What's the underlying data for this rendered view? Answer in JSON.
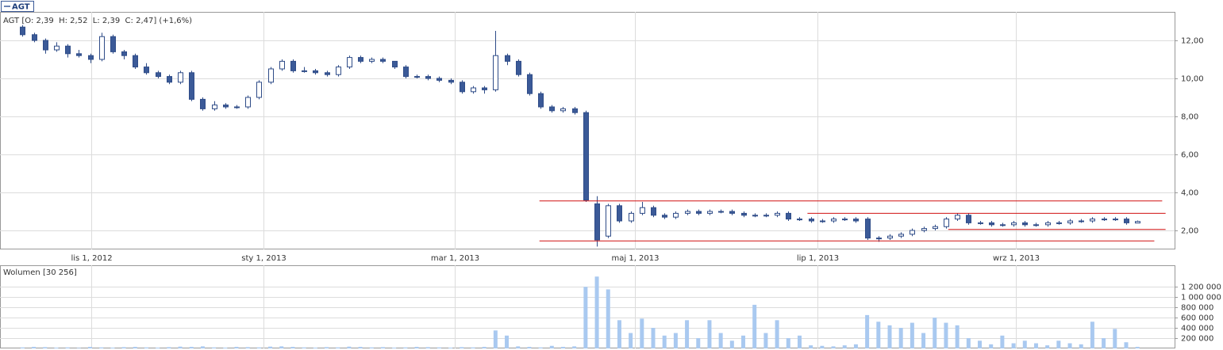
{
  "chart_data": [
    {
      "type": "candlestick",
      "name": "AGT",
      "info_label": "AGT [O: 2,39  H: 2,52  L: 2,39  C: 2,47] (+1,6%)",
      "x": [
        0,
        1,
        2,
        3,
        4,
        5,
        6,
        7,
        8,
        9,
        10,
        11,
        12,
        13,
        14,
        15,
        16,
        17,
        18,
        19,
        20,
        21,
        22,
        23,
        24,
        25,
        26,
        27,
        28,
        29,
        30,
        31,
        32,
        33,
        34,
        35,
        36,
        37,
        38,
        39,
        40,
        41,
        42,
        43,
        44,
        45,
        46,
        47,
        48,
        49,
        50,
        51,
        52,
        53,
        54,
        55,
        56,
        57,
        58,
        59,
        60,
        61,
        62,
        63,
        64,
        65,
        66,
        67,
        68,
        69,
        70,
        71,
        72,
        73,
        74,
        75,
        76,
        77,
        78,
        79,
        80,
        81,
        82,
        83,
        84,
        85,
        86,
        87,
        88,
        89,
        90,
        91,
        92,
        93,
        94,
        95,
        96,
        97,
        98,
        99
      ],
      "open": [
        12.7,
        12.3,
        12.0,
        11.5,
        11.7,
        11.3,
        11.2,
        11.0,
        12.2,
        11.4,
        11.2,
        10.6,
        10.3,
        10.1,
        9.8,
        10.3,
        8.9,
        8.4,
        8.6,
        8.5,
        8.5,
        9.0,
        9.8,
        10.5,
        10.9,
        10.4,
        10.4,
        10.3,
        10.2,
        10.6,
        11.1,
        10.9,
        11.0,
        10.9,
        10.6,
        10.1,
        10.1,
        10.0,
        9.9,
        9.8,
        9.3,
        9.5,
        9.4,
        11.2,
        10.9,
        10.2,
        9.2,
        8.5,
        8.3,
        8.4,
        8.2,
        3.4,
        1.7,
        3.3,
        2.5,
        2.9,
        3.2,
        2.8,
        2.7,
        2.9,
        3.0,
        2.9,
        3.0,
        3.0,
        2.9,
        2.8,
        2.8,
        2.8,
        2.9,
        2.6,
        2.6,
        2.5,
        2.5,
        2.6,
        2.6,
        2.6,
        1.6,
        1.6,
        1.7,
        1.8,
        2.0,
        2.1,
        2.2,
        2.6,
        2.8,
        2.4,
        2.4,
        2.3,
        2.3,
        2.4,
        2.3,
        2.3,
        2.4,
        2.4,
        2.5,
        2.5,
        2.6,
        2.6,
        2.6,
        2.39
      ],
      "high": [
        12.8,
        12.4,
        12.1,
        11.9,
        11.8,
        11.5,
        11.3,
        12.4,
        12.3,
        11.5,
        11.3,
        10.8,
        10.4,
        10.2,
        10.4,
        10.4,
        9.0,
        8.8,
        8.7,
        8.6,
        9.1,
        9.9,
        10.6,
        11.0,
        11.0,
        10.6,
        10.5,
        10.4,
        10.7,
        11.2,
        11.2,
        11.1,
        11.1,
        10.9,
        10.7,
        10.2,
        10.2,
        10.1,
        10.0,
        9.9,
        9.6,
        9.6,
        12.5,
        11.3,
        11.0,
        10.3,
        9.3,
        8.6,
        8.5,
        8.5,
        8.3,
        3.8,
        3.4,
        3.4,
        3.0,
        3.5,
        3.3,
        2.9,
        3.0,
        3.1,
        3.1,
        3.1,
        3.1,
        3.1,
        3.0,
        2.9,
        2.9,
        3.0,
        3.0,
        2.7,
        2.7,
        2.6,
        2.7,
        2.7,
        2.7,
        2.7,
        1.7,
        1.8,
        1.9,
        2.1,
        2.2,
        2.3,
        2.7,
        2.9,
        2.9,
        2.5,
        2.5,
        2.4,
        2.5,
        2.5,
        2.4,
        2.5,
        2.5,
        2.6,
        2.6,
        2.7,
        2.7,
        2.7,
        2.7,
        2.52
      ],
      "low": [
        12.2,
        11.9,
        11.3,
        11.4,
        11.1,
        11.1,
        10.8,
        10.9,
        11.3,
        11.0,
        10.5,
        10.2,
        10.0,
        9.7,
        9.7,
        8.8,
        8.3,
        8.3,
        8.4,
        8.4,
        8.4,
        8.9,
        9.7,
        10.4,
        10.3,
        10.3,
        10.2,
        10.1,
        10.1,
        10.5,
        10.8,
        10.8,
        10.8,
        10.5,
        10.0,
        10.0,
        9.9,
        9.8,
        9.7,
        9.2,
        9.2,
        9.2,
        9.3,
        10.7,
        10.1,
        9.1,
        8.4,
        8.2,
        8.2,
        8.1,
        3.5,
        1.15,
        1.6,
        2.4,
        2.4,
        2.8,
        2.7,
        2.6,
        2.6,
        2.8,
        2.8,
        2.8,
        2.9,
        2.8,
        2.7,
        2.7,
        2.7,
        2.7,
        2.5,
        2.5,
        2.4,
        2.4,
        2.4,
        2.5,
        2.4,
        1.5,
        1.4,
        1.5,
        1.6,
        1.7,
        1.9,
        2.0,
        2.1,
        2.5,
        2.3,
        2.3,
        2.2,
        2.2,
        2.2,
        2.2,
        2.2,
        2.2,
        2.3,
        2.3,
        2.4,
        2.4,
        2.5,
        2.5,
        2.3,
        2.39
      ],
      "close": [
        12.3,
        12.0,
        11.5,
        11.7,
        11.3,
        11.2,
        11.0,
        12.2,
        11.4,
        11.2,
        10.6,
        10.3,
        10.1,
        9.8,
        10.3,
        8.9,
        8.4,
        8.6,
        8.5,
        8.5,
        9.0,
        9.8,
        10.5,
        10.9,
        10.4,
        10.4,
        10.3,
        10.2,
        10.6,
        11.1,
        10.9,
        11.0,
        10.9,
        10.6,
        10.1,
        10.1,
        10.0,
        9.9,
        9.8,
        9.3,
        9.5,
        9.4,
        11.2,
        10.9,
        10.2,
        9.2,
        8.5,
        8.3,
        8.4,
        8.2,
        3.6,
        1.5,
        3.3,
        2.5,
        2.9,
        3.2,
        2.8,
        2.7,
        2.9,
        3.0,
        2.9,
        3.0,
        3.0,
        2.9,
        2.8,
        2.8,
        2.8,
        2.9,
        2.6,
        2.6,
        2.5,
        2.5,
        2.6,
        2.6,
        2.5,
        1.6,
        1.6,
        1.7,
        1.8,
        2.0,
        2.1,
        2.2,
        2.6,
        2.8,
        2.4,
        2.4,
        2.3,
        2.3,
        2.4,
        2.3,
        2.3,
        2.4,
        2.4,
        2.5,
        2.5,
        2.6,
        2.6,
        2.6,
        2.4,
        2.47
      ],
      "up_color": "#ffffff",
      "down_color": "#3b5a98",
      "color": "#2f4c88",
      "xlim": [
        -2,
        102.3
      ],
      "xticks": [
        {
          "value": 6.1,
          "label": "lis 1, 2012"
        },
        {
          "value": 21.4,
          "label": "sty 1, 2013"
        },
        {
          "value": 38.4,
          "label": "mar 1, 2013"
        },
        {
          "value": 54.4,
          "label": "maj 1, 2013"
        },
        {
          "value": 70.6,
          "label": "lip 1, 2013"
        },
        {
          "value": 88.2,
          "label": "wrz 1, 2013"
        }
      ],
      "ylim": [
        1,
        13.5
      ],
      "yticks": [
        {
          "value": 2,
          "label": "2,00"
        },
        {
          "value": 4,
          "label": "4,00"
        },
        {
          "value": 6,
          "label": "6,00"
        },
        {
          "value": 8,
          "label": "8,00"
        },
        {
          "value": 10,
          "label": "10,00"
        },
        {
          "value": 12,
          "label": "12,00"
        }
      ],
      "grid": true,
      "lines_color": "#d01010",
      "lines": [
        {
          "y": 3.55,
          "x": [
            45.9,
            101.2
          ]
        },
        {
          "y": 1.45,
          "x": [
            45.9,
            100.5
          ]
        },
        {
          "y": 2.9,
          "x": [
            69.7,
            101.5
          ]
        },
        {
          "y": 2.05,
          "x": [
            82.2,
            101.5
          ]
        }
      ]
    },
    {
      "type": "bar",
      "label": "Wolumen [30 256]",
      "color": "#a9c9f0",
      "x": [
        0,
        1,
        2,
        3,
        4,
        5,
        6,
        7,
        8,
        9,
        10,
        11,
        12,
        13,
        14,
        15,
        16,
        17,
        18,
        19,
        20,
        21,
        22,
        23,
        24,
        25,
        26,
        27,
        28,
        29,
        30,
        31,
        32,
        33,
        34,
        35,
        36,
        37,
        38,
        39,
        40,
        41,
        42,
        43,
        44,
        45,
        46,
        47,
        48,
        49,
        50,
        51,
        52,
        53,
        54,
        55,
        56,
        57,
        58,
        59,
        60,
        61,
        62,
        63,
        64,
        65,
        66,
        67,
        68,
        69,
        70,
        71,
        72,
        73,
        74,
        75,
        76,
        77,
        78,
        79,
        80,
        81,
        82,
        83,
        84,
        85,
        86,
        87,
        88,
        89,
        90,
        91,
        92,
        93,
        94,
        95,
        96,
        97,
        98,
        99
      ],
      "values": [
        20000,
        30000,
        25000,
        15000,
        20000,
        10000,
        30000,
        20000,
        15000,
        25000,
        30000,
        20000,
        15000,
        25000,
        35000,
        30000,
        40000,
        20000,
        15000,
        30000,
        25000,
        20000,
        35000,
        40000,
        30000,
        20000,
        15000,
        25000,
        20000,
        35000,
        30000,
        20000,
        25000,
        15000,
        20000,
        30000,
        25000,
        20000,
        15000,
        25000,
        20000,
        30000,
        350000,
        250000,
        40000,
        30000,
        20000,
        50000,
        30000,
        40000,
        1200000,
        1400000,
        1150000,
        550000,
        300000,
        580000,
        400000,
        250000,
        300000,
        550000,
        200000,
        550000,
        300000,
        150000,
        250000,
        850000,
        300000,
        550000,
        200000,
        250000,
        60000,
        50000,
        40000,
        60000,
        80000,
        650000,
        520000,
        450000,
        400000,
        500000,
        300000,
        600000,
        500000,
        450000,
        200000,
        150000,
        80000,
        250000,
        100000,
        150000,
        100000,
        60000,
        150000,
        100000,
        80000,
        520000,
        200000,
        380000,
        120000,
        30256
      ],
      "xlim": [
        -2,
        102.3
      ],
      "ylim": [
        0,
        1620000
      ],
      "yticks": [
        {
          "value": 200000,
          "label": "200 000"
        },
        {
          "value": 400000,
          "label": "400 000"
        },
        {
          "value": 600000,
          "label": "600 000"
        },
        {
          "value": 800000,
          "label": "800 000"
        },
        {
          "value": 1000000,
          "label": "1 000 000"
        },
        {
          "value": 1200000,
          "label": "1 200 000"
        }
      ],
      "grid": true
    }
  ]
}
